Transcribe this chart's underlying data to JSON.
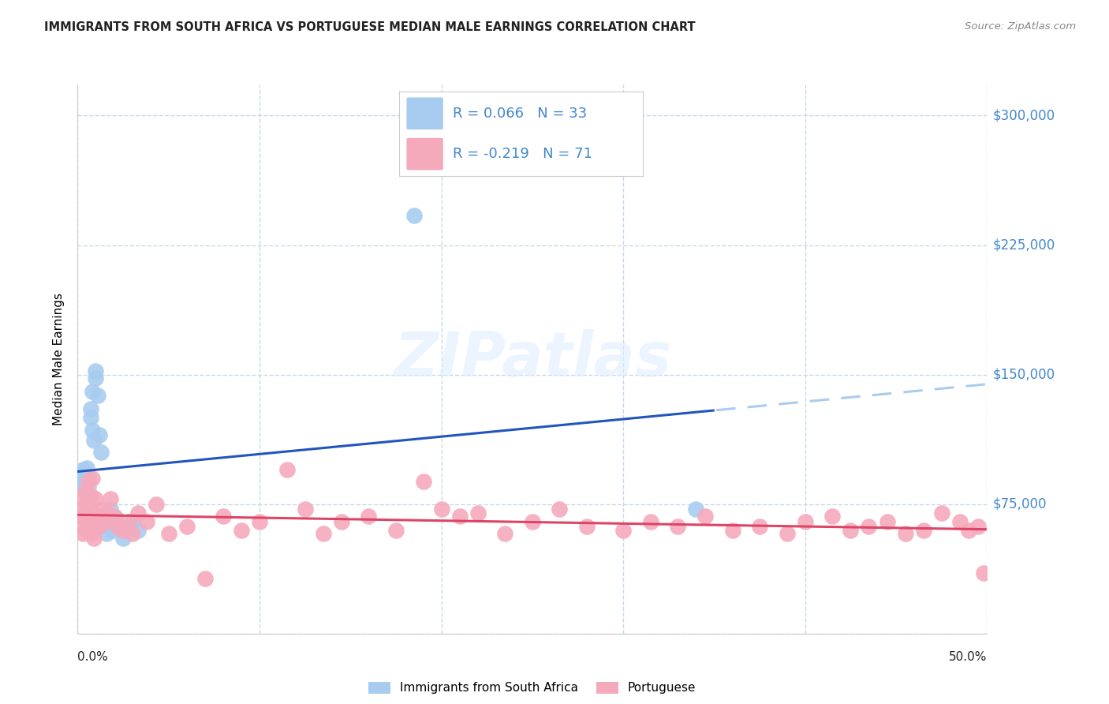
{
  "title": "IMMIGRANTS FROM SOUTH AFRICA VS PORTUGUESE MEDIAN MALE EARNINGS CORRELATION CHART",
  "source": "Source: ZipAtlas.com",
  "ylabel": "Median Male Earnings",
  "legend_label1": "Immigrants from South Africa",
  "legend_label2": "Portuguese",
  "R1": 0.066,
  "N1": 33,
  "R2": -0.219,
  "N2": 71,
  "yticks": [
    0,
    75000,
    150000,
    225000,
    300000
  ],
  "ytick_labels": [
    "",
    "$75,000",
    "$150,000",
    "$225,000",
    "$300,000"
  ],
  "xlim": [
    0.0,
    0.5
  ],
  "ylim": [
    0,
    318000
  ],
  "color_blue": "#A8CCF0",
  "color_pink": "#F5AABC",
  "line_color_blue": "#2255BB",
  "line_color_pink": "#DD4466",
  "line_color_dashed": "#AACCEE",
  "background_color": "#FFFFFF",
  "grid_color": "#C8D8E8",
  "title_color": "#222222",
  "source_color": "#888888",
  "ytick_color": "#4488CC",
  "xtick_color": "#222222",
  "blue_x": [
    0.002,
    0.003,
    0.003,
    0.004,
    0.004,
    0.005,
    0.005,
    0.005,
    0.006,
    0.006,
    0.007,
    0.007,
    0.008,
    0.008,
    0.009,
    0.01,
    0.01,
    0.011,
    0.012,
    0.013,
    0.014,
    0.015,
    0.016,
    0.017,
    0.018,
    0.019,
    0.021,
    0.023,
    0.025,
    0.03,
    0.033,
    0.185,
    0.34
  ],
  "blue_y": [
    92000,
    88000,
    95000,
    85000,
    93000,
    89000,
    96000,
    82000,
    91000,
    85000,
    130000,
    125000,
    140000,
    118000,
    112000,
    152000,
    148000,
    138000,
    115000,
    105000,
    62000,
    68000,
    58000,
    65000,
    72000,
    60000,
    67000,
    62000,
    55000,
    65000,
    60000,
    242000,
    72000
  ],
  "pink_x": [
    0.001,
    0.002,
    0.002,
    0.003,
    0.003,
    0.004,
    0.004,
    0.005,
    0.005,
    0.006,
    0.006,
    0.007,
    0.007,
    0.008,
    0.008,
    0.009,
    0.009,
    0.01,
    0.011,
    0.012,
    0.013,
    0.015,
    0.016,
    0.018,
    0.02,
    0.022,
    0.025,
    0.028,
    0.03,
    0.033,
    0.038,
    0.043,
    0.05,
    0.06,
    0.07,
    0.08,
    0.09,
    0.1,
    0.115,
    0.125,
    0.135,
    0.145,
    0.16,
    0.175,
    0.19,
    0.2,
    0.21,
    0.22,
    0.235,
    0.25,
    0.265,
    0.28,
    0.3,
    0.315,
    0.33,
    0.345,
    0.36,
    0.375,
    0.39,
    0.4,
    0.415,
    0.425,
    0.435,
    0.445,
    0.455,
    0.465,
    0.475,
    0.485,
    0.49,
    0.495,
    0.498
  ],
  "pink_y": [
    68000,
    72000,
    62000,
    78000,
    58000,
    82000,
    68000,
    75000,
    60000,
    88000,
    65000,
    80000,
    58000,
    90000,
    70000,
    62000,
    55000,
    78000,
    68000,
    62000,
    72000,
    65000,
    70000,
    78000,
    68000,
    62000,
    60000,
    65000,
    58000,
    70000,
    65000,
    75000,
    58000,
    62000,
    32000,
    68000,
    60000,
    65000,
    95000,
    72000,
    58000,
    65000,
    68000,
    60000,
    88000,
    72000,
    68000,
    70000,
    58000,
    65000,
    72000,
    62000,
    60000,
    65000,
    62000,
    68000,
    60000,
    62000,
    58000,
    65000,
    68000,
    60000,
    62000,
    65000,
    58000,
    60000,
    70000,
    65000,
    60000,
    62000,
    35000
  ]
}
